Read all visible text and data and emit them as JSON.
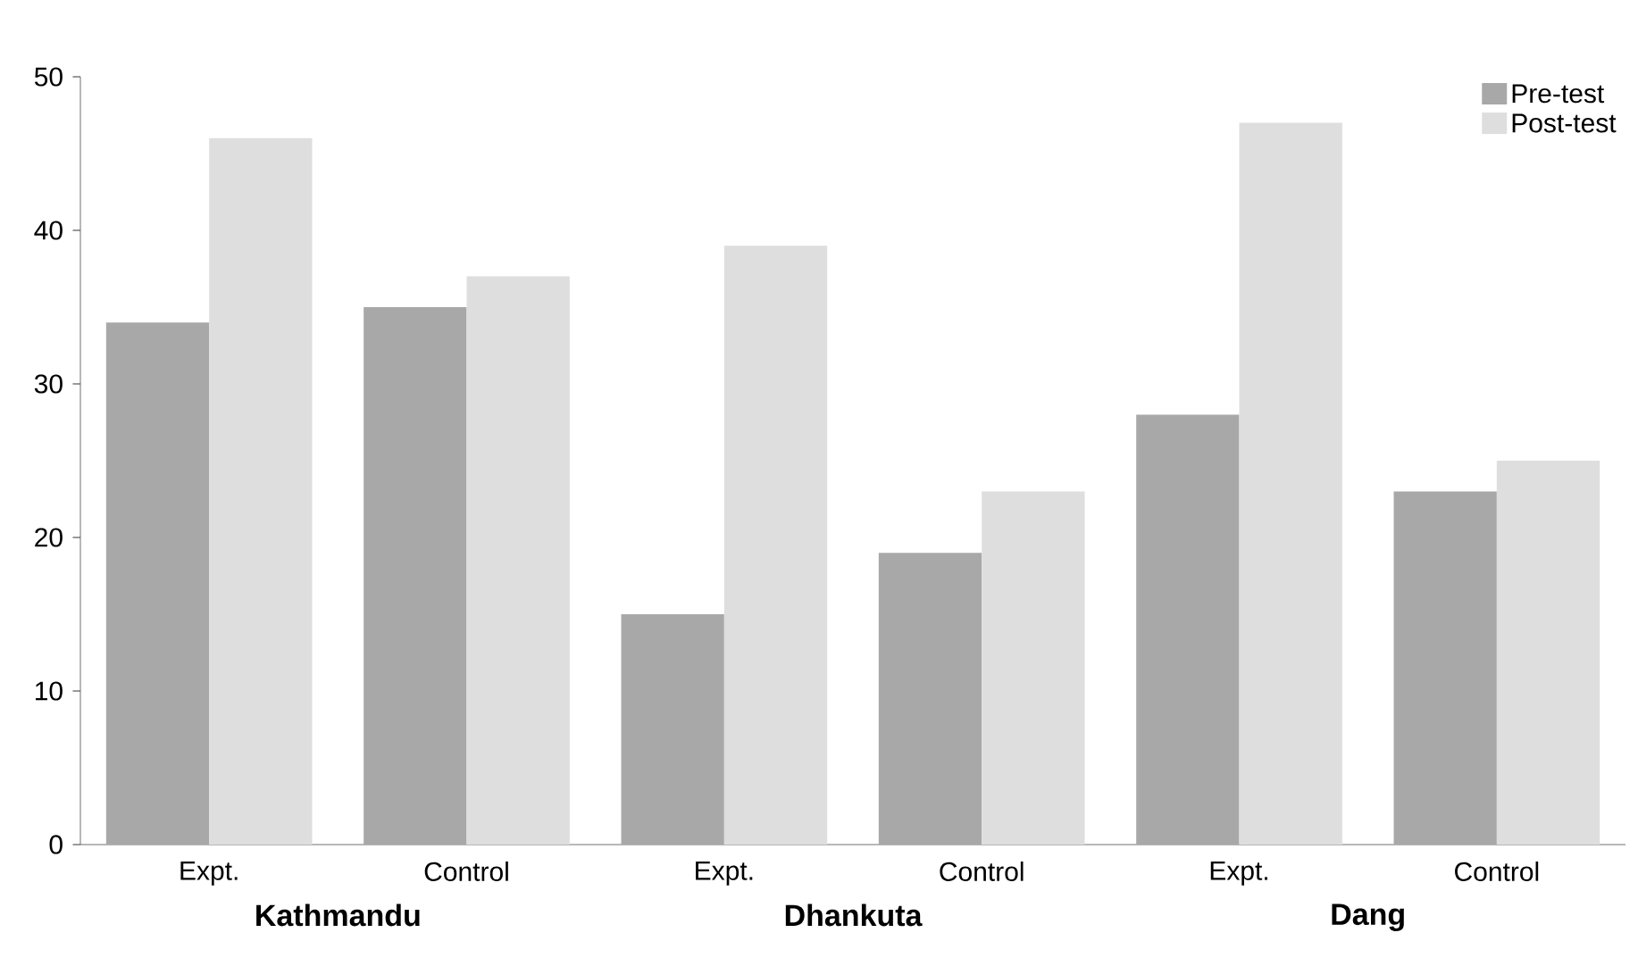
{
  "chart_data": {
    "type": "bar",
    "categories": [
      "Expt.",
      "Control",
      "Expt.",
      "Control",
      "Expt.",
      "Control"
    ],
    "series": [
      {
        "name": "Pre-test",
        "color": "#a8a8a8",
        "values": [
          34,
          35,
          15,
          19,
          28,
          23
        ]
      },
      {
        "name": "Post-test",
        "color": "#dedede",
        "values": [
          46,
          37,
          39,
          23,
          47,
          25
        ]
      }
    ],
    "annotations": [
      "Kathmandu",
      "Dhankuta",
      "Dang"
    ],
    "ylim": [
      0,
      50
    ],
    "yticks": [
      0,
      10,
      20,
      30,
      40,
      50
    ],
    "grid": false,
    "legend": "top right"
  }
}
